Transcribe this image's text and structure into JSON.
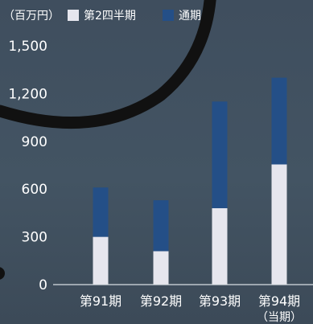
{
  "colors": {
    "background": "#415060",
    "q2": "#e6e6ee",
    "annual": "#244f87",
    "axis": "#d8dde2",
    "decoration_stroke": "#111111"
  },
  "chart_data": {
    "type": "bar",
    "stacked": true,
    "unit_label": "（百万円）",
    "categories": [
      "第91期",
      "第92期",
      "第93期",
      "第94期"
    ],
    "category_sublabels": [
      "",
      "",
      "",
      "（当期）"
    ],
    "series": [
      {
        "name": "第2四半期",
        "values": [
          300,
          210,
          480,
          755
        ]
      },
      {
        "name": "通期",
        "values": [
          310,
          320,
          670,
          545
        ]
      }
    ],
    "yticks": [
      0,
      300,
      600,
      900,
      1200,
      1500
    ],
    "ytick_labels": [
      "0",
      "300",
      "600",
      "900",
      "1,200",
      "1,500"
    ],
    "ylim": [
      0,
      1500
    ],
    "grid": false,
    "legend_position": "top"
  }
}
